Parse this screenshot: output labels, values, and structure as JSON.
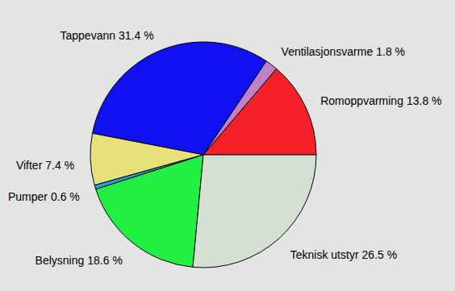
{
  "chart_data": {
    "type": "pie",
    "categories": [
      "Romoppvarming",
      "Ventilasjonsvarme",
      "Tappevann",
      "Vifter",
      "Pumper",
      "Belysning",
      "Teknisk utstyr"
    ],
    "values": [
      13.8,
      1.8,
      31.4,
      7.4,
      0.6,
      18.6,
      26.5
    ],
    "value_labels": [
      "13.8 %",
      "1.8 %",
      "31.4 %",
      "7.4 %",
      "0.6 %",
      "18.6 %",
      "26.5 %"
    ],
    "colors": [
      "#f52028",
      "#c080c8",
      "#1010f0",
      "#e8e07a",
      "#20a0e0",
      "#22ee44",
      "#d4e0d4"
    ],
    "data_labels": true
  }
}
